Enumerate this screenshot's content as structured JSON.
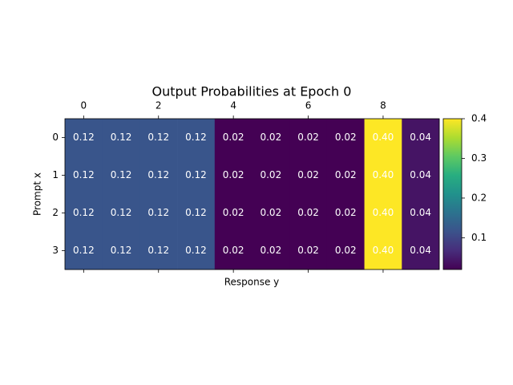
{
  "chart_data": {
    "type": "heatmap",
    "title": "Output Probabilities at Epoch 0",
    "xlabel": "Response y",
    "ylabel": "Prompt x",
    "colormap": "viridis",
    "values": [
      [
        0.12,
        0.12,
        0.12,
        0.12,
        0.02,
        0.02,
        0.02,
        0.02,
        0.4,
        0.04
      ],
      [
        0.12,
        0.12,
        0.12,
        0.12,
        0.02,
        0.02,
        0.02,
        0.02,
        0.4,
        0.04
      ],
      [
        0.12,
        0.12,
        0.12,
        0.12,
        0.02,
        0.02,
        0.02,
        0.02,
        0.4,
        0.04
      ],
      [
        0.12,
        0.12,
        0.12,
        0.12,
        0.02,
        0.02,
        0.02,
        0.02,
        0.4,
        0.04
      ]
    ],
    "value_labels": [
      [
        "0.12",
        "0.12",
        "0.12",
        "0.12",
        "0.02",
        "0.02",
        "0.02",
        "0.02",
        "0.40",
        "0.04"
      ],
      [
        "0.12",
        "0.12",
        "0.12",
        "0.12",
        "0.02",
        "0.02",
        "0.02",
        "0.02",
        "0.40",
        "0.04"
      ],
      [
        "0.12",
        "0.12",
        "0.12",
        "0.12",
        "0.02",
        "0.02",
        "0.02",
        "0.02",
        "0.40",
        "0.04"
      ],
      [
        "0.12",
        "0.12",
        "0.12",
        "0.12",
        "0.02",
        "0.02",
        "0.02",
        "0.02",
        "0.40",
        "0.04"
      ]
    ],
    "xlim": [
      -0.5,
      9.5
    ],
    "xticks": [
      0,
      2,
      4,
      6,
      8
    ],
    "ylim": [
      3.5,
      -0.5
    ],
    "yticks": [
      0,
      1,
      2,
      3
    ],
    "clim": [
      0.02,
      0.4
    ],
    "cticks": [
      0.1,
      0.2,
      0.3,
      0.4
    ]
  }
}
